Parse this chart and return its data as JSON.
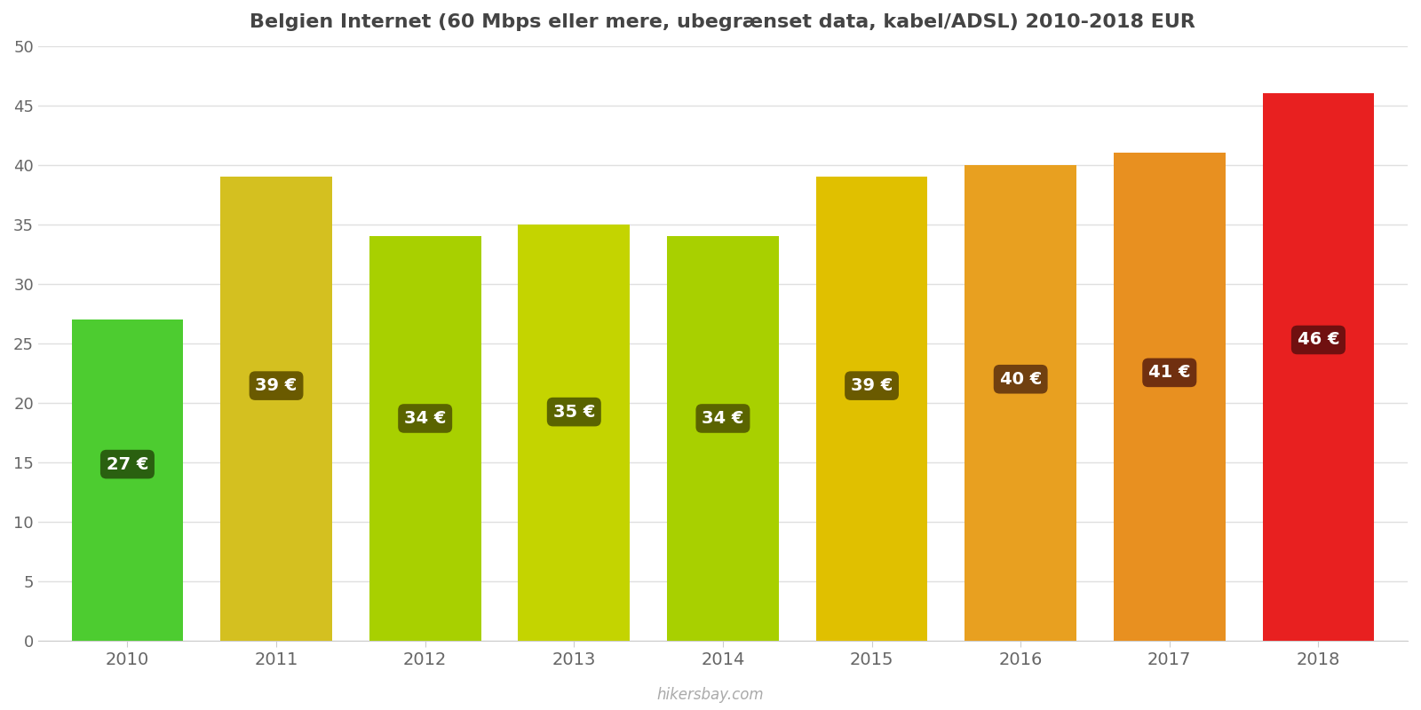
{
  "years": [
    2010,
    2011,
    2012,
    2013,
    2014,
    2015,
    2016,
    2017,
    2018
  ],
  "values": [
    27,
    39,
    34,
    35,
    34,
    39,
    40,
    41,
    46
  ],
  "bar_colors": [
    "#4dcc30",
    "#d4c020",
    "#a8d000",
    "#c4d400",
    "#a8d000",
    "#e0c000",
    "#e8a020",
    "#e89020",
    "#e82020"
  ],
  "label_bg_colors": [
    "#2a6010",
    "#6a5a00",
    "#5a6400",
    "#5a6400",
    "#5a6400",
    "#6a5a00",
    "#704010",
    "#703010",
    "#701010"
  ],
  "title": "Belgien Internet (60 Mbps eller mere, ubegrænset data, kabel/ADSL) 2010-2018 EUR",
  "ylim": [
    0,
    50
  ],
  "yticks": [
    0,
    5,
    10,
    15,
    20,
    25,
    30,
    35,
    40,
    45,
    50
  ],
  "watermark": "hikersbay.com",
  "bg_color": "#ffffff"
}
